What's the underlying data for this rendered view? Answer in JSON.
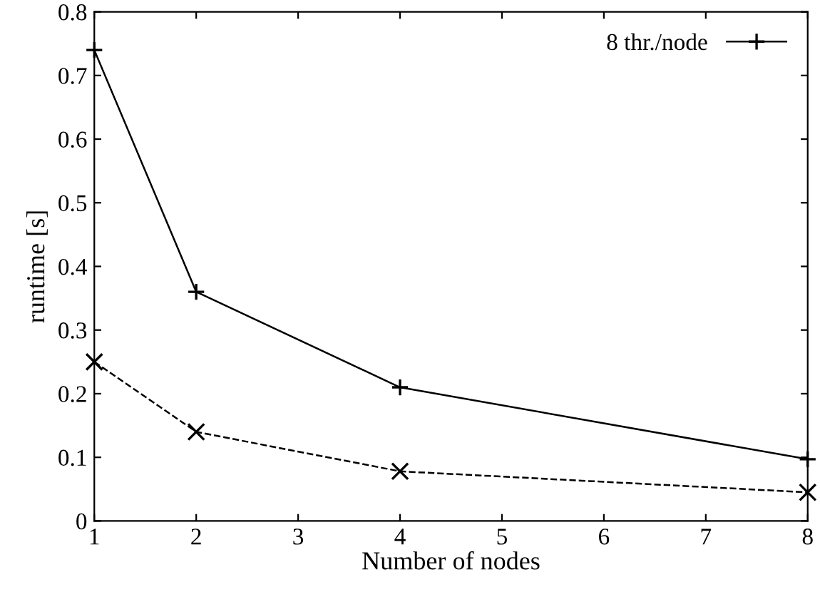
{
  "chart_data": {
    "type": "line",
    "xlabel": "Number of nodes",
    "ylabel": "runtime [s]",
    "x": [
      1,
      2,
      4,
      8
    ],
    "series": [
      {
        "name": "8 thr./node",
        "color": "#000000",
        "values": [
          0.74,
          0.36,
          0.21,
          0.097
        ],
        "marker": "plus",
        "line_style": "solid"
      },
      {
        "color": "#000000",
        "values": [
          0.25,
          0.14,
          0.078,
          0.045
        ],
        "marker": "cross",
        "line_style": "dashed"
      }
    ],
    "xlim": [
      1,
      8
    ],
    "xticks": [
      1,
      2,
      3,
      4,
      5,
      6,
      7,
      8
    ],
    "ylim": [
      0,
      0.8
    ],
    "yticks": [
      0,
      0.1,
      0.2,
      0.3,
      0.4,
      0.5,
      0.6,
      0.7,
      0.8
    ],
    "grid": false,
    "legend": "top right"
  }
}
